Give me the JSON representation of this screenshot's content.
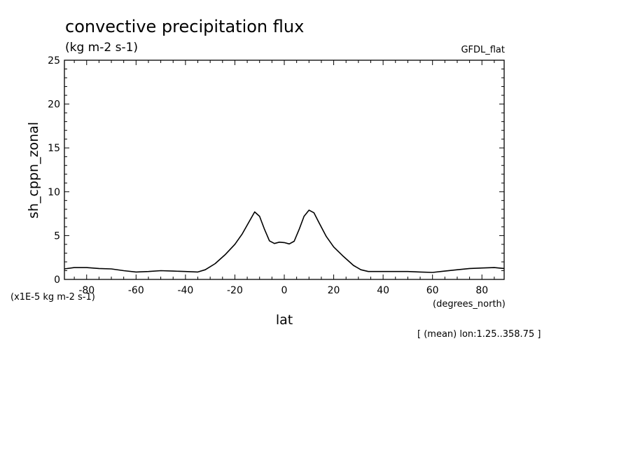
{
  "chart_data": {
    "type": "line",
    "title": "convective precipitation flux",
    "subtitle": "(kg m-2 s-1)",
    "dataset_label": "GFDL_flat",
    "xlabel": "lat",
    "x_units": "(degrees_north)",
    "ylabel": "sh_cppn_zonal",
    "y_scale_note": "(x1E-5 kg m-2 s-1)",
    "footnote": "[ (mean) lon:1.25..358.75 ]",
    "xlim": [
      -89,
      89
    ],
    "ylim": [
      0,
      25
    ],
    "x_ticks": [
      -80,
      -60,
      -40,
      -20,
      0,
      20,
      40,
      60,
      80
    ],
    "x_tick_labels": [
      "-80",
      "-60",
      "-40",
      "-20",
      "0",
      "20",
      "40",
      "60",
      "80"
    ],
    "y_ticks": [
      0,
      5,
      10,
      15,
      20,
      25
    ],
    "y_tick_labels": [
      "0",
      "5",
      "10",
      "15",
      "20",
      "25"
    ],
    "grid": false,
    "legend": "none",
    "line_color": "#000000",
    "series": [
      {
        "x": [
          -89,
          -85,
          -80,
          -75,
          -70,
          -65,
          -60,
          -55,
          -50,
          -45,
          -40,
          -35,
          -32,
          -28,
          -24,
          -20,
          -17,
          -14,
          -12,
          -10,
          -8,
          -6,
          -4,
          -2,
          0,
          2,
          4,
          6,
          8,
          10,
          12,
          14,
          17,
          20,
          24,
          28,
          31,
          34,
          40,
          50,
          55,
          60,
          65,
          70,
          75,
          80,
          85,
          89
        ],
        "y": [
          1.2,
          1.35,
          1.35,
          1.25,
          1.2,
          1.0,
          0.85,
          0.9,
          1.0,
          0.95,
          0.9,
          0.85,
          1.1,
          1.8,
          2.8,
          4.0,
          5.2,
          6.7,
          7.7,
          7.2,
          5.7,
          4.4,
          4.1,
          4.25,
          4.2,
          4.05,
          4.35,
          5.7,
          7.2,
          7.9,
          7.6,
          6.5,
          4.9,
          3.7,
          2.6,
          1.6,
          1.1,
          0.9,
          0.9,
          0.9,
          0.85,
          0.8,
          0.95,
          1.1,
          1.25,
          1.3,
          1.35,
          1.25
        ]
      }
    ]
  }
}
